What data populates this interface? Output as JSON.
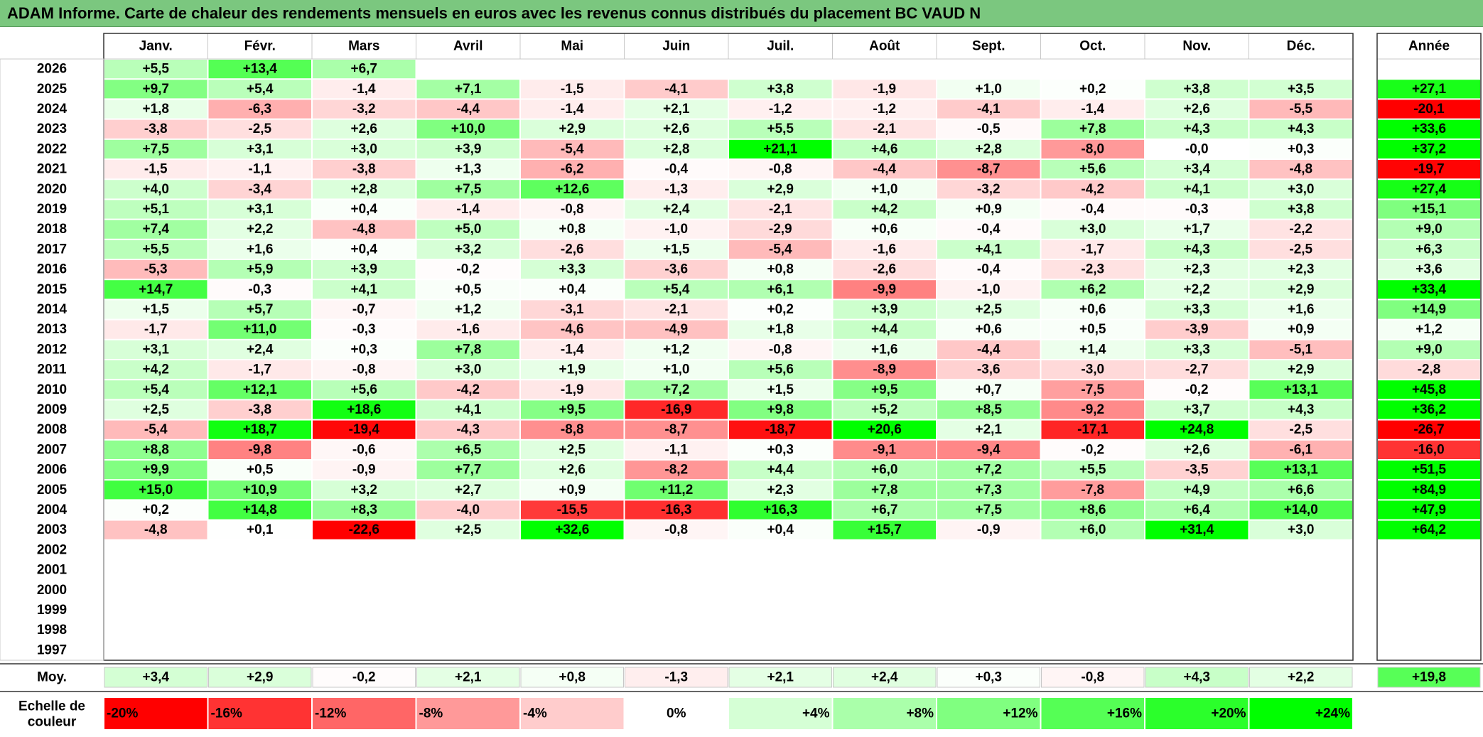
{
  "title": "ADAM Informe. Carte de chaleur des rendements mensuels en euros avec les revenus connus distribués du placement BC VAUD N",
  "chart_data": {
    "type": "heatmap",
    "months": [
      "Janv.",
      "Févr.",
      "Mars",
      "Avril",
      "Mai",
      "Juin",
      "Juil.",
      "Août",
      "Sept.",
      "Oct.",
      "Nov.",
      "Déc."
    ],
    "year_header": "Année",
    "rows": [
      {
        "year": "2026",
        "values": [
          "+5,5",
          "+13,4",
          "+6,7",
          "",
          "",
          "",
          "",
          "",
          "",
          "",
          "",
          ""
        ],
        "annual": ""
      },
      {
        "year": "2025",
        "values": [
          "+9,7",
          "+5,4",
          "-1,4",
          "+7,1",
          "-1,5",
          "-4,1",
          "+3,8",
          "-1,9",
          "+1,0",
          "+0,2",
          "+3,8",
          "+3,5"
        ],
        "annual": "+27,1"
      },
      {
        "year": "2024",
        "values": [
          "+1,8",
          "-6,3",
          "-3,2",
          "-4,4",
          "-1,4",
          "+2,1",
          "-1,2",
          "-1,2",
          "-4,1",
          "-1,4",
          "+2,6",
          "-5,5"
        ],
        "annual": "-20,1"
      },
      {
        "year": "2023",
        "values": [
          "-3,8",
          "-2,5",
          "+2,6",
          "+10,0",
          "+2,9",
          "+2,6",
          "+5,5",
          "-2,1",
          "-0,5",
          "+7,8",
          "+4,3",
          "+4,3"
        ],
        "annual": "+33,6"
      },
      {
        "year": "2022",
        "values": [
          "+7,5",
          "+3,1",
          "+3,0",
          "+3,9",
          "-5,4",
          "+2,8",
          "+21,1",
          "+4,6",
          "+2,8",
          "-8,0",
          "-0,0",
          "+0,3"
        ],
        "annual": "+37,2"
      },
      {
        "year": "2021",
        "values": [
          "-1,5",
          "-1,1",
          "-3,8",
          "+1,3",
          "-6,2",
          "-0,4",
          "-0,8",
          "-4,4",
          "-8,7",
          "+5,6",
          "+3,4",
          "-4,8"
        ],
        "annual": "-19,7"
      },
      {
        "year": "2020",
        "values": [
          "+4,0",
          "-3,4",
          "+2,8",
          "+7,5",
          "+12,6",
          "-1,3",
          "+2,9",
          "+1,0",
          "-3,2",
          "-4,2",
          "+4,1",
          "+3,0"
        ],
        "annual": "+27,4"
      },
      {
        "year": "2019",
        "values": [
          "+5,1",
          "+3,1",
          "+0,4",
          "-1,4",
          "-0,8",
          "+2,4",
          "-2,1",
          "+4,2",
          "+0,9",
          "-0,4",
          "-0,3",
          "+3,8"
        ],
        "annual": "+15,1"
      },
      {
        "year": "2018",
        "values": [
          "+7,4",
          "+2,2",
          "-4,8",
          "+5,0",
          "+0,8",
          "-1,0",
          "-2,9",
          "+0,6",
          "-0,4",
          "+3,0",
          "+1,7",
          "-2,2"
        ],
        "annual": "+9,0"
      },
      {
        "year": "2017",
        "values": [
          "+5,5",
          "+1,6",
          "+0,4",
          "+3,2",
          "-2,6",
          "+1,5",
          "-5,4",
          "-1,6",
          "+4,1",
          "-1,7",
          "+4,3",
          "-2,5"
        ],
        "annual": "+6,3"
      },
      {
        "year": "2016",
        "values": [
          "-5,3",
          "+5,9",
          "+3,9",
          "-0,2",
          "+3,3",
          "-3,6",
          "+0,8",
          "-2,6",
          "-0,4",
          "-2,3",
          "+2,3",
          "+2,3"
        ],
        "annual": "+3,6"
      },
      {
        "year": "2015",
        "values": [
          "+14,7",
          "-0,3",
          "+4,1",
          "+0,5",
          "+0,4",
          "+5,4",
          "+6,1",
          "-9,9",
          "-1,0",
          "+6,2",
          "+2,2",
          "+2,9"
        ],
        "annual": "+33,4"
      },
      {
        "year": "2014",
        "values": [
          "+1,5",
          "+5,7",
          "-0,7",
          "+1,2",
          "-3,1",
          "-2,1",
          "+0,2",
          "+3,9",
          "+2,5",
          "+0,6",
          "+3,3",
          "+1,6"
        ],
        "annual": "+14,9"
      },
      {
        "year": "2013",
        "values": [
          "-1,7",
          "+11,0",
          "-0,3",
          "-1,6",
          "-4,6",
          "-4,9",
          "+1,8",
          "+4,4",
          "+0,6",
          "+0,5",
          "-3,9",
          "+0,9"
        ],
        "annual": "+1,2"
      },
      {
        "year": "2012",
        "values": [
          "+3,1",
          "+2,4",
          "+0,3",
          "+7,8",
          "-1,4",
          "+1,2",
          "-0,8",
          "+1,6",
          "-4,4",
          "+1,4",
          "+3,3",
          "-5,1"
        ],
        "annual": "+9,0"
      },
      {
        "year": "2011",
        "values": [
          "+4,2",
          "-1,7",
          "-0,8",
          "+3,0",
          "+1,9",
          "+1,0",
          "+5,6",
          "-8,9",
          "-3,6",
          "-3,0",
          "-2,7",
          "+2,9"
        ],
        "annual": "-2,8"
      },
      {
        "year": "2010",
        "values": [
          "+5,4",
          "+12,1",
          "+5,6",
          "-4,2",
          "-1,9",
          "+7,2",
          "+1,5",
          "+9,5",
          "+0,7",
          "-7,5",
          "-0,2",
          "+13,1"
        ],
        "annual": "+45,8"
      },
      {
        "year": "2009",
        "values": [
          "+2,5",
          "-3,8",
          "+18,6",
          "+4,1",
          "+9,5",
          "-16,9",
          "+9,8",
          "+5,2",
          "+8,5",
          "-9,2",
          "+3,7",
          "+4,3"
        ],
        "annual": "+36,2"
      },
      {
        "year": "2008",
        "values": [
          "-5,4",
          "+18,7",
          "-19,4",
          "-4,3",
          "-8,8",
          "-8,7",
          "-18,7",
          "+20,6",
          "+2,1",
          "-17,1",
          "+24,8",
          "-2,5"
        ],
        "annual": "-26,7"
      },
      {
        "year": "2007",
        "values": [
          "+8,8",
          "-9,8",
          "-0,6",
          "+6,5",
          "+2,5",
          "-1,1",
          "+0,3",
          "-9,1",
          "-9,4",
          "-0,2",
          "+2,6",
          "-6,1"
        ],
        "annual": "-16,0"
      },
      {
        "year": "2006",
        "values": [
          "+9,9",
          "+0,5",
          "-0,9",
          "+7,7",
          "+2,6",
          "-8,2",
          "+4,4",
          "+6,0",
          "+7,2",
          "+5,5",
          "-3,5",
          "+13,1"
        ],
        "annual": "+51,5"
      },
      {
        "year": "2005",
        "values": [
          "+15,0",
          "+10,9",
          "+3,2",
          "+2,7",
          "+0,9",
          "+11,2",
          "+2,3",
          "+7,8",
          "+7,3",
          "-7,8",
          "+4,9",
          "+6,6"
        ],
        "annual": "+84,9"
      },
      {
        "year": "2004",
        "values": [
          "+0,2",
          "+14,8",
          "+8,3",
          "-4,0",
          "-15,5",
          "-16,3",
          "+16,3",
          "+6,7",
          "+7,5",
          "+8,6",
          "+6,4",
          "+14,0"
        ],
        "annual": "+47,9"
      },
      {
        "year": "2003",
        "values": [
          "-4,8",
          "+0,1",
          "-22,6",
          "+2,5",
          "+32,6",
          "-0,8",
          "+0,4",
          "+15,7",
          "-0,9",
          "+6,0",
          "+31,4",
          "+3,0"
        ],
        "annual": "+64,2"
      },
      {
        "year": "2002",
        "values": [
          "",
          "",
          "",
          "",
          "",
          "",
          "",
          "",
          "",
          "",
          "",
          ""
        ],
        "annual": ""
      },
      {
        "year": "2001",
        "values": [
          "",
          "",
          "",
          "",
          "",
          "",
          "",
          "",
          "",
          "",
          "",
          ""
        ],
        "annual": ""
      },
      {
        "year": "2000",
        "values": [
          "",
          "",
          "",
          "",
          "",
          "",
          "",
          "",
          "",
          "",
          "",
          ""
        ],
        "annual": ""
      },
      {
        "year": "1999",
        "values": [
          "",
          "",
          "",
          "",
          "",
          "",
          "",
          "",
          "",
          "",
          "",
          ""
        ],
        "annual": ""
      },
      {
        "year": "1998",
        "values": [
          "",
          "",
          "",
          "",
          "",
          "",
          "",
          "",
          "",
          "",
          "",
          ""
        ],
        "annual": ""
      },
      {
        "year": "1997",
        "values": [
          "",
          "",
          "",
          "",
          "",
          "",
          "",
          "",
          "",
          "",
          "",
          ""
        ],
        "annual": ""
      }
    ],
    "average": {
      "label": "Moy.",
      "values": [
        "+3,4",
        "+2,9",
        "-0,2",
        "+2,1",
        "+0,8",
        "-1,3",
        "+2,1",
        "+2,4",
        "+0,3",
        "-0,8",
        "+4,3",
        "+2,2"
      ],
      "annual": "+19,8"
    },
    "scale": {
      "label": "Echelle de couleur",
      "items": [
        "-20%",
        "-16%",
        "-12%",
        "-8%",
        "-4%",
        "0%",
        "+4%",
        "+8%",
        "+12%",
        "+16%",
        "+20%",
        "+24%"
      ]
    },
    "colors": {
      "negative_max": "#ff0000",
      "neutral": "#ffffff",
      "positive_max": "#00ff00",
      "title_bar": "#7bc77f",
      "grid": "#c8c8c8"
    }
  }
}
